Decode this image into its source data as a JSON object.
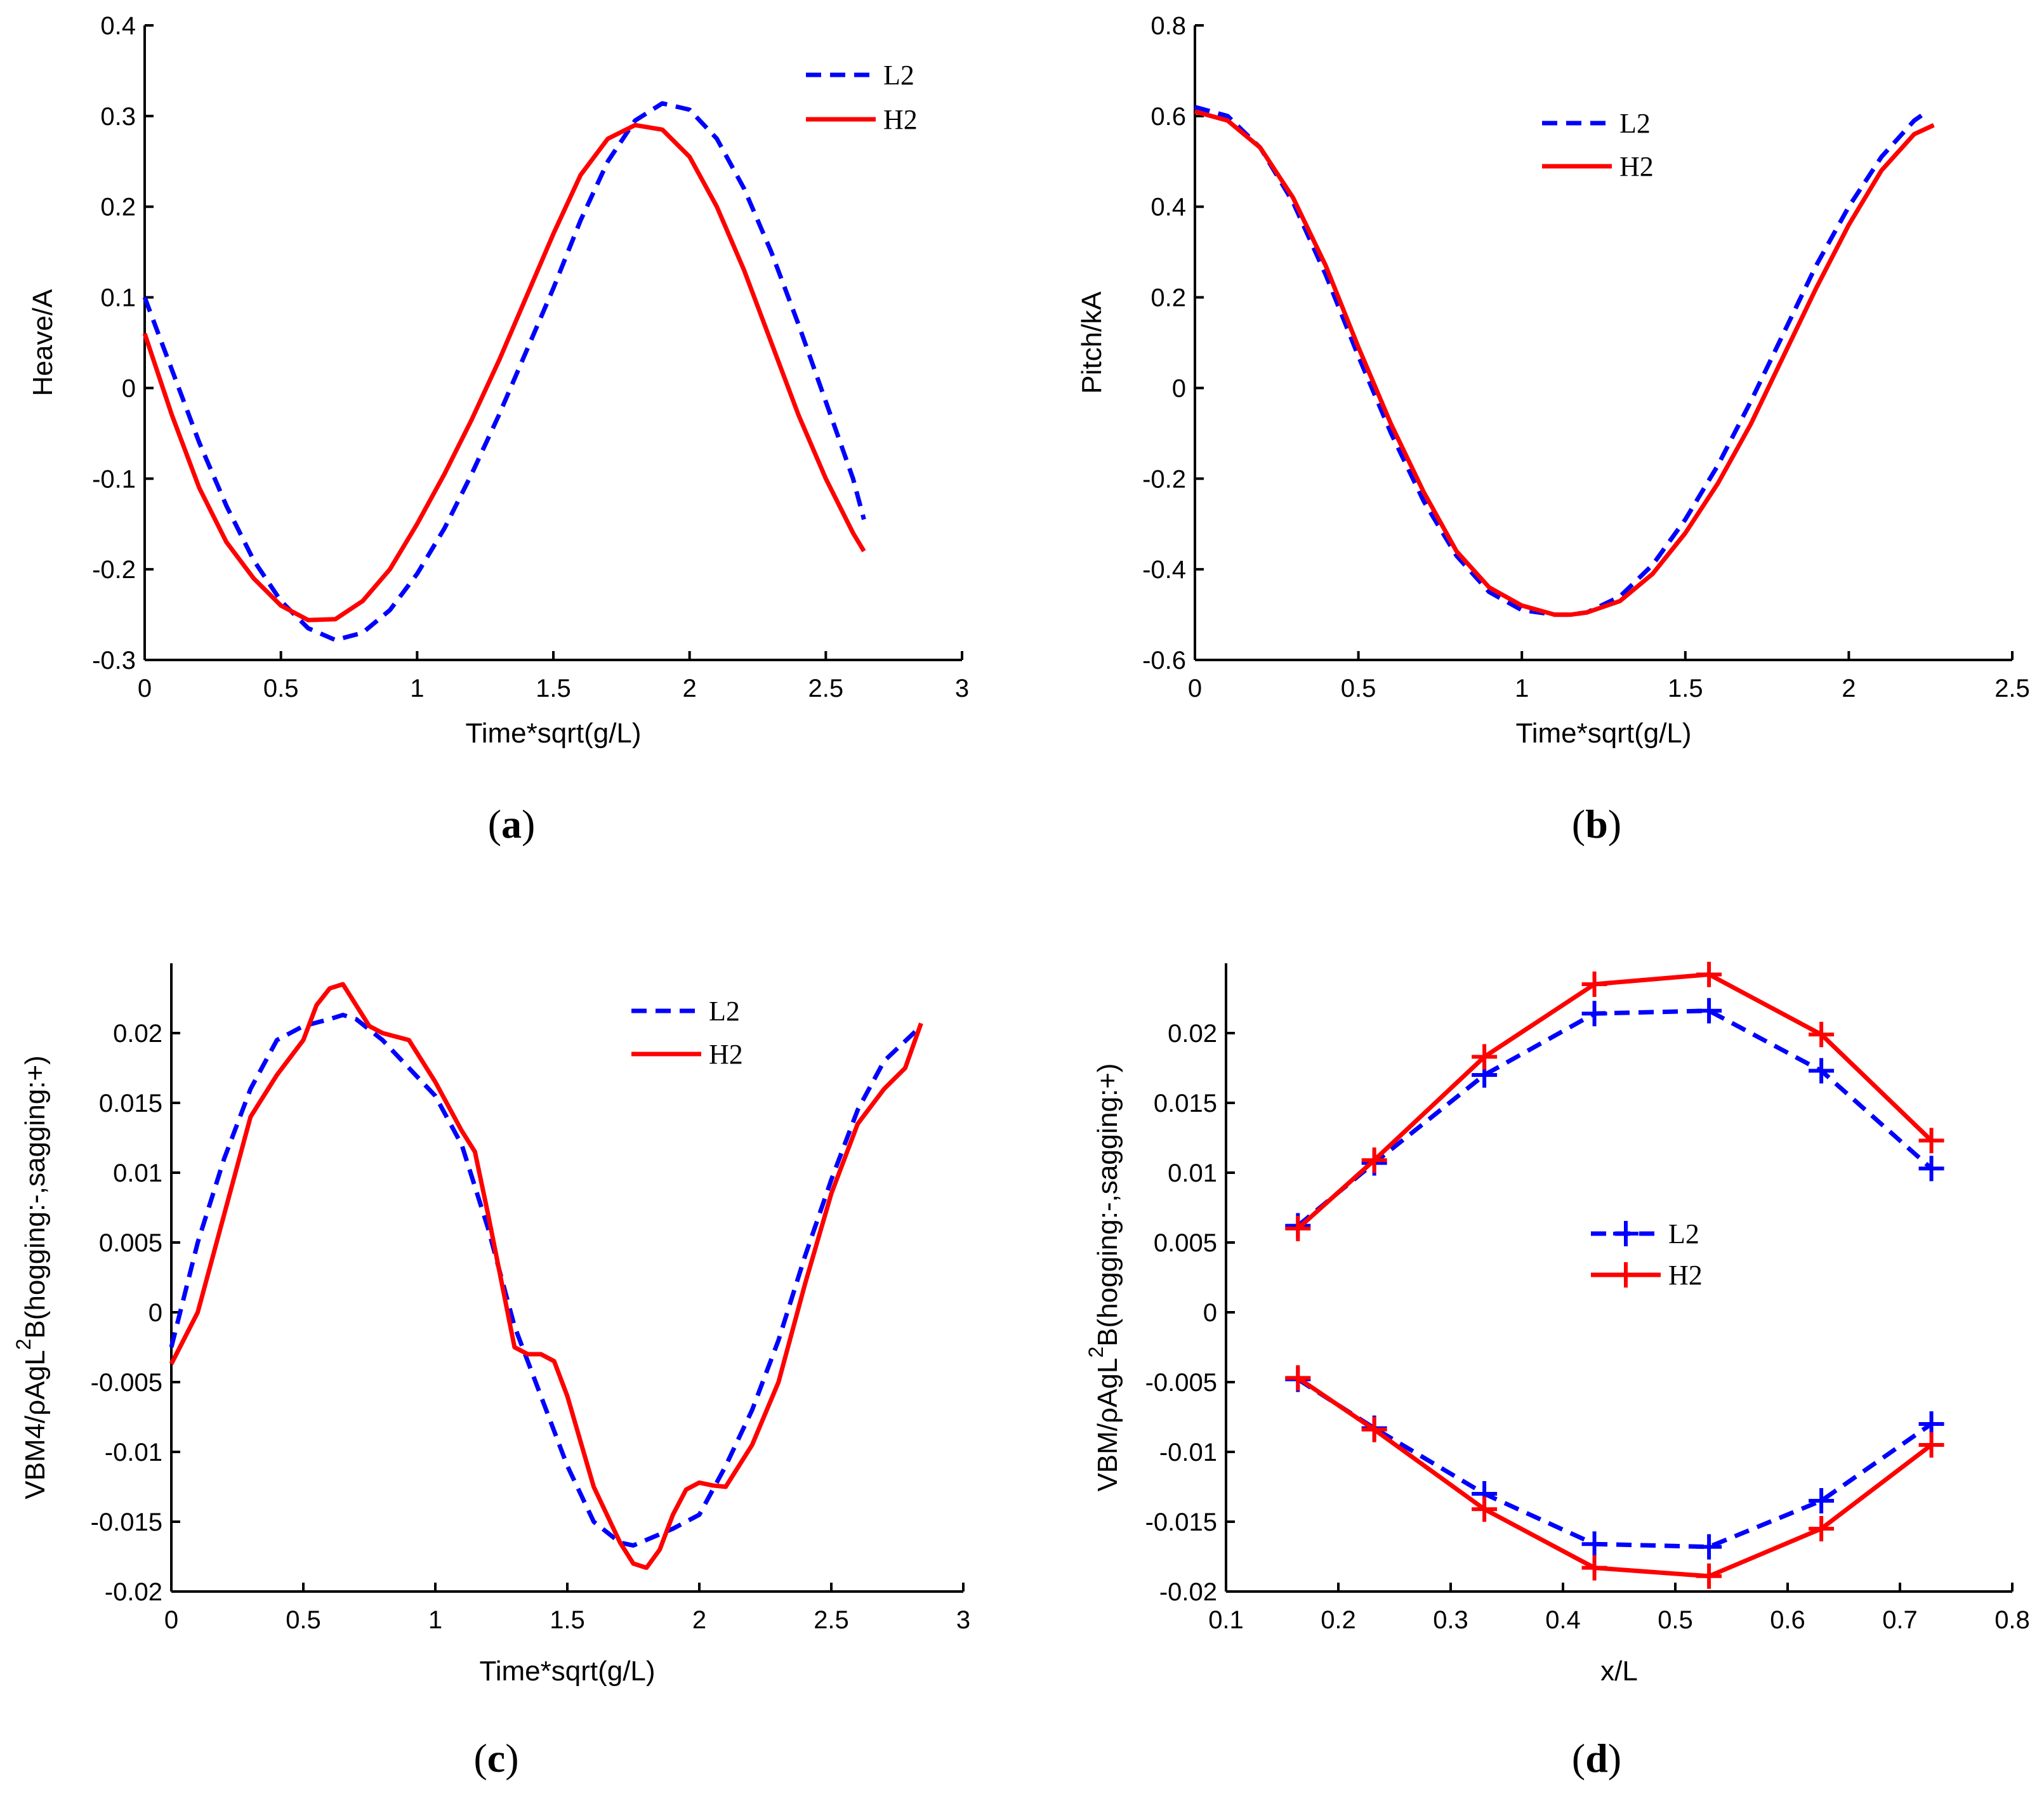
{
  "colors": {
    "L2": "#0000ff",
    "H2": "#ff0000"
  },
  "chart_data": [
    {
      "panel": "a",
      "type": "line",
      "xlabel": "Time*sqrt(g/L)",
      "ylabel": "Heave/A",
      "xlim": [
        0,
        3
      ],
      "ylim": [
        -0.3,
        0.4
      ],
      "xticks": [
        "0",
        "0.5",
        "1",
        "1.5",
        "2",
        "2.5",
        "3"
      ],
      "yticks": [
        "-0.3",
        "-0.2",
        "-0.1",
        "0",
        "0.1",
        "0.2",
        "0.3",
        "0.4"
      ],
      "legend": {
        "position": "top-right",
        "entries": [
          "L2",
          "H2"
        ]
      },
      "caption": {
        "open": "(",
        "letter": "a",
        "close": ")"
      },
      "series": [
        {
          "name": "L2",
          "style": "dashed",
          "color": "#0000ff",
          "x": [
            0,
            0.1,
            0.2,
            0.3,
            0.4,
            0.5,
            0.6,
            0.7,
            0.8,
            0.9,
            1.0,
            1.1,
            1.2,
            1.3,
            1.4,
            1.5,
            1.6,
            1.7,
            1.8,
            1.9,
            2.0,
            2.1,
            2.2,
            2.3,
            2.4,
            2.5,
            2.6,
            2.64
          ],
          "values": [
            0.1,
            0.02,
            -0.06,
            -0.13,
            -0.19,
            -0.235,
            -0.265,
            -0.278,
            -0.27,
            -0.245,
            -0.205,
            -0.155,
            -0.095,
            -0.03,
            0.04,
            0.11,
            0.185,
            0.25,
            0.295,
            0.314,
            0.307,
            0.275,
            0.22,
            0.15,
            0.07,
            -0.015,
            -0.1,
            -0.145
          ]
        },
        {
          "name": "H2",
          "style": "solid",
          "color": "#ff0000",
          "x": [
            0,
            0.1,
            0.2,
            0.3,
            0.4,
            0.5,
            0.6,
            0.7,
            0.8,
            0.9,
            1.0,
            1.1,
            1.2,
            1.3,
            1.4,
            1.5,
            1.6,
            1.7,
            1.8,
            1.9,
            2.0,
            2.1,
            2.2,
            2.3,
            2.4,
            2.5,
            2.6,
            2.64
          ],
          "values": [
            0.06,
            -0.03,
            -0.11,
            -0.17,
            -0.21,
            -0.24,
            -0.256,
            -0.255,
            -0.235,
            -0.2,
            -0.15,
            -0.095,
            -0.035,
            0.03,
            0.1,
            0.17,
            0.235,
            0.275,
            0.29,
            0.285,
            0.255,
            0.2,
            0.13,
            0.05,
            -0.03,
            -0.1,
            -0.16,
            -0.18
          ]
        }
      ]
    },
    {
      "panel": "b",
      "type": "line",
      "xlabel": "Time*sqrt(g/L)",
      "ylabel": "Pitch/kA",
      "xlim": [
        0,
        2.5
      ],
      "ylim": [
        -0.6,
        0.8
      ],
      "xticks": [
        "0",
        "0.5",
        "1",
        "1.5",
        "2",
        "2.5"
      ],
      "yticks": [
        "-0.6",
        "-0.4",
        "-0.2",
        "0",
        "0.2",
        "0.4",
        "0.6",
        "0.8"
      ],
      "legend": {
        "position": "top-center",
        "entries": [
          "L2",
          "H2"
        ]
      },
      "caption": {
        "open": "(",
        "letter": "b",
        "close": ")"
      },
      "series": [
        {
          "name": "L2",
          "style": "dashed",
          "color": "#0000ff",
          "x": [
            0,
            0.1,
            0.2,
            0.3,
            0.4,
            0.5,
            0.6,
            0.7,
            0.8,
            0.9,
            1.0,
            1.1,
            1.15,
            1.2,
            1.3,
            1.4,
            1.5,
            1.6,
            1.7,
            1.8,
            1.9,
            2.0,
            2.1,
            2.2,
            2.24
          ],
          "values": [
            0.62,
            0.6,
            0.53,
            0.41,
            0.25,
            0.07,
            -0.1,
            -0.25,
            -0.37,
            -0.45,
            -0.49,
            -0.5,
            -0.5,
            -0.495,
            -0.46,
            -0.39,
            -0.29,
            -0.17,
            -0.03,
            0.12,
            0.27,
            0.4,
            0.51,
            0.59,
            0.61
          ]
        },
        {
          "name": "H2",
          "style": "solid",
          "color": "#ff0000",
          "x": [
            0,
            0.1,
            0.2,
            0.3,
            0.4,
            0.5,
            0.6,
            0.7,
            0.8,
            0.9,
            1.0,
            1.1,
            1.15,
            1.2,
            1.3,
            1.4,
            1.5,
            1.6,
            1.7,
            1.8,
            1.9,
            2.0,
            2.1,
            2.2,
            2.26
          ],
          "values": [
            0.61,
            0.59,
            0.53,
            0.42,
            0.27,
            0.09,
            -0.08,
            -0.23,
            -0.36,
            -0.44,
            -0.48,
            -0.5,
            -0.5,
            -0.495,
            -0.47,
            -0.41,
            -0.32,
            -0.21,
            -0.08,
            0.07,
            0.22,
            0.36,
            0.48,
            0.56,
            0.58
          ]
        }
      ]
    },
    {
      "panel": "c",
      "type": "line",
      "xlabel": "Time*sqrt(g/L)",
      "ylabel": "VBM4/ρAgL",
      "ylabel_sup": "2",
      "ylabel_suffix": "B(hogging:-,sagging:+)",
      "xlim": [
        0,
        3
      ],
      "ylim": [
        -0.02,
        0.025
      ],
      "xticks": [
        "0",
        "0.5",
        "1",
        "1.5",
        "2",
        "2.5",
        "3"
      ],
      "yticks": [
        "-0.02",
        "-0.015",
        "-0.01",
        "-0.005",
        "0",
        "0.005",
        "0.01",
        "0.015",
        "0.02"
      ],
      "legend": {
        "position": "top-right",
        "entries": [
          "L2",
          "H2"
        ]
      },
      "caption": {
        "open": "(",
        "letter": "c",
        "close": ")"
      },
      "series": [
        {
          "name": "L2",
          "style": "dashed",
          "color": "#0000ff",
          "x": [
            0,
            0.1,
            0.2,
            0.3,
            0.4,
            0.5,
            0.6,
            0.65,
            0.7,
            0.8,
            0.9,
            1.0,
            1.1,
            1.2,
            1.3,
            1.4,
            1.5,
            1.6,
            1.7,
            1.75,
            1.8,
            1.9,
            2.0,
            2.1,
            2.2,
            2.3,
            2.4,
            2.5,
            2.6,
            2.7,
            2.84
          ],
          "values": [
            -0.0025,
            0.005,
            0.011,
            0.016,
            0.0195,
            0.0205,
            0.021,
            0.0213,
            0.021,
            0.0195,
            0.0175,
            0.0155,
            0.012,
            0.006,
            -0.001,
            -0.006,
            -0.011,
            -0.015,
            -0.0165,
            -0.0167,
            -0.0163,
            -0.0155,
            -0.0145,
            -0.011,
            -0.007,
            -0.002,
            0.004,
            0.0095,
            0.0145,
            0.018,
            0.0205
          ]
        },
        {
          "name": "H2",
          "style": "solid",
          "color": "#ff0000",
          "x": [
            0,
            0.1,
            0.2,
            0.3,
            0.4,
            0.5,
            0.55,
            0.6,
            0.65,
            0.7,
            0.75,
            0.8,
            0.9,
            1.0,
            1.1,
            1.15,
            1.2,
            1.3,
            1.35,
            1.4,
            1.45,
            1.5,
            1.6,
            1.7,
            1.75,
            1.8,
            1.85,
            1.9,
            1.95,
            2.0,
            2.05,
            2.1,
            2.2,
            2.3,
            2.4,
            2.5,
            2.6,
            2.7,
            2.78,
            2.84
          ],
          "values": [
            -0.0037,
            0.0,
            0.007,
            0.014,
            0.017,
            0.0195,
            0.022,
            0.0232,
            0.0235,
            0.022,
            0.0205,
            0.02,
            0.0195,
            0.0165,
            0.013,
            0.0115,
            0.007,
            -0.0025,
            -0.003,
            -0.003,
            -0.0035,
            -0.006,
            -0.0125,
            -0.0165,
            -0.018,
            -0.0183,
            -0.017,
            -0.0145,
            -0.0127,
            -0.0122,
            -0.0124,
            -0.0125,
            -0.0095,
            -0.005,
            0.002,
            0.0085,
            0.0135,
            0.016,
            0.0175,
            0.0207
          ]
        }
      ]
    },
    {
      "panel": "d",
      "type": "line",
      "xlabel": "x/L",
      "ylabel": "VBM/ρAgL",
      "ylabel_sup": "2",
      "ylabel_suffix": "B(hogging:-,sagging:+)",
      "xlim": [
        0.1,
        0.8
      ],
      "ylim": [
        -0.02,
        0.025
      ],
      "xticks": [
        "0.1",
        "0.2",
        "0.3",
        "0.4",
        "0.5",
        "0.6",
        "0.7",
        "0.8"
      ],
      "yticks": [
        "-0.02",
        "-0.015",
        "-0.01",
        "-0.005",
        "0",
        "0.005",
        "0.01",
        "0.015",
        "0.02"
      ],
      "legend": {
        "position": "center",
        "entries": [
          "L2",
          "H2"
        ]
      },
      "caption": {
        "open": "(",
        "letter": "d",
        "close": ")"
      },
      "markers": "plus",
      "series": [
        {
          "name": "L2",
          "part": "sagging",
          "style": "dashed",
          "color": "#0000ff",
          "x": [
            0.164,
            0.232,
            0.33,
            0.428,
            0.53,
            0.63,
            0.728
          ],
          "values": [
            0.0062,
            0.0107,
            0.017,
            0.0214,
            0.0216,
            0.0173,
            0.0103
          ]
        },
        {
          "name": "H2",
          "part": "sagging",
          "style": "solid",
          "color": "#ff0000",
          "x": [
            0.164,
            0.232,
            0.33,
            0.428,
            0.53,
            0.63,
            0.728
          ],
          "values": [
            0.006,
            0.0109,
            0.0183,
            0.0235,
            0.0242,
            0.0199,
            0.0123
          ]
        },
        {
          "name": "L2",
          "part": "hogging",
          "style": "dashed",
          "color": "#0000ff",
          "x": [
            0.164,
            0.232,
            0.33,
            0.428,
            0.53,
            0.63,
            0.728
          ],
          "values": [
            -0.0048,
            -0.0083,
            -0.013,
            -0.0166,
            -0.0168,
            -0.0135,
            -0.008
          ]
        },
        {
          "name": "H2",
          "part": "hogging",
          "style": "solid",
          "color": "#ff0000",
          "x": [
            0.164,
            0.232,
            0.33,
            0.428,
            0.53,
            0.63,
            0.728
          ],
          "values": [
            -0.0047,
            -0.0084,
            -0.0141,
            -0.0183,
            -0.0189,
            -0.0155,
            -0.0095
          ]
        }
      ]
    }
  ]
}
